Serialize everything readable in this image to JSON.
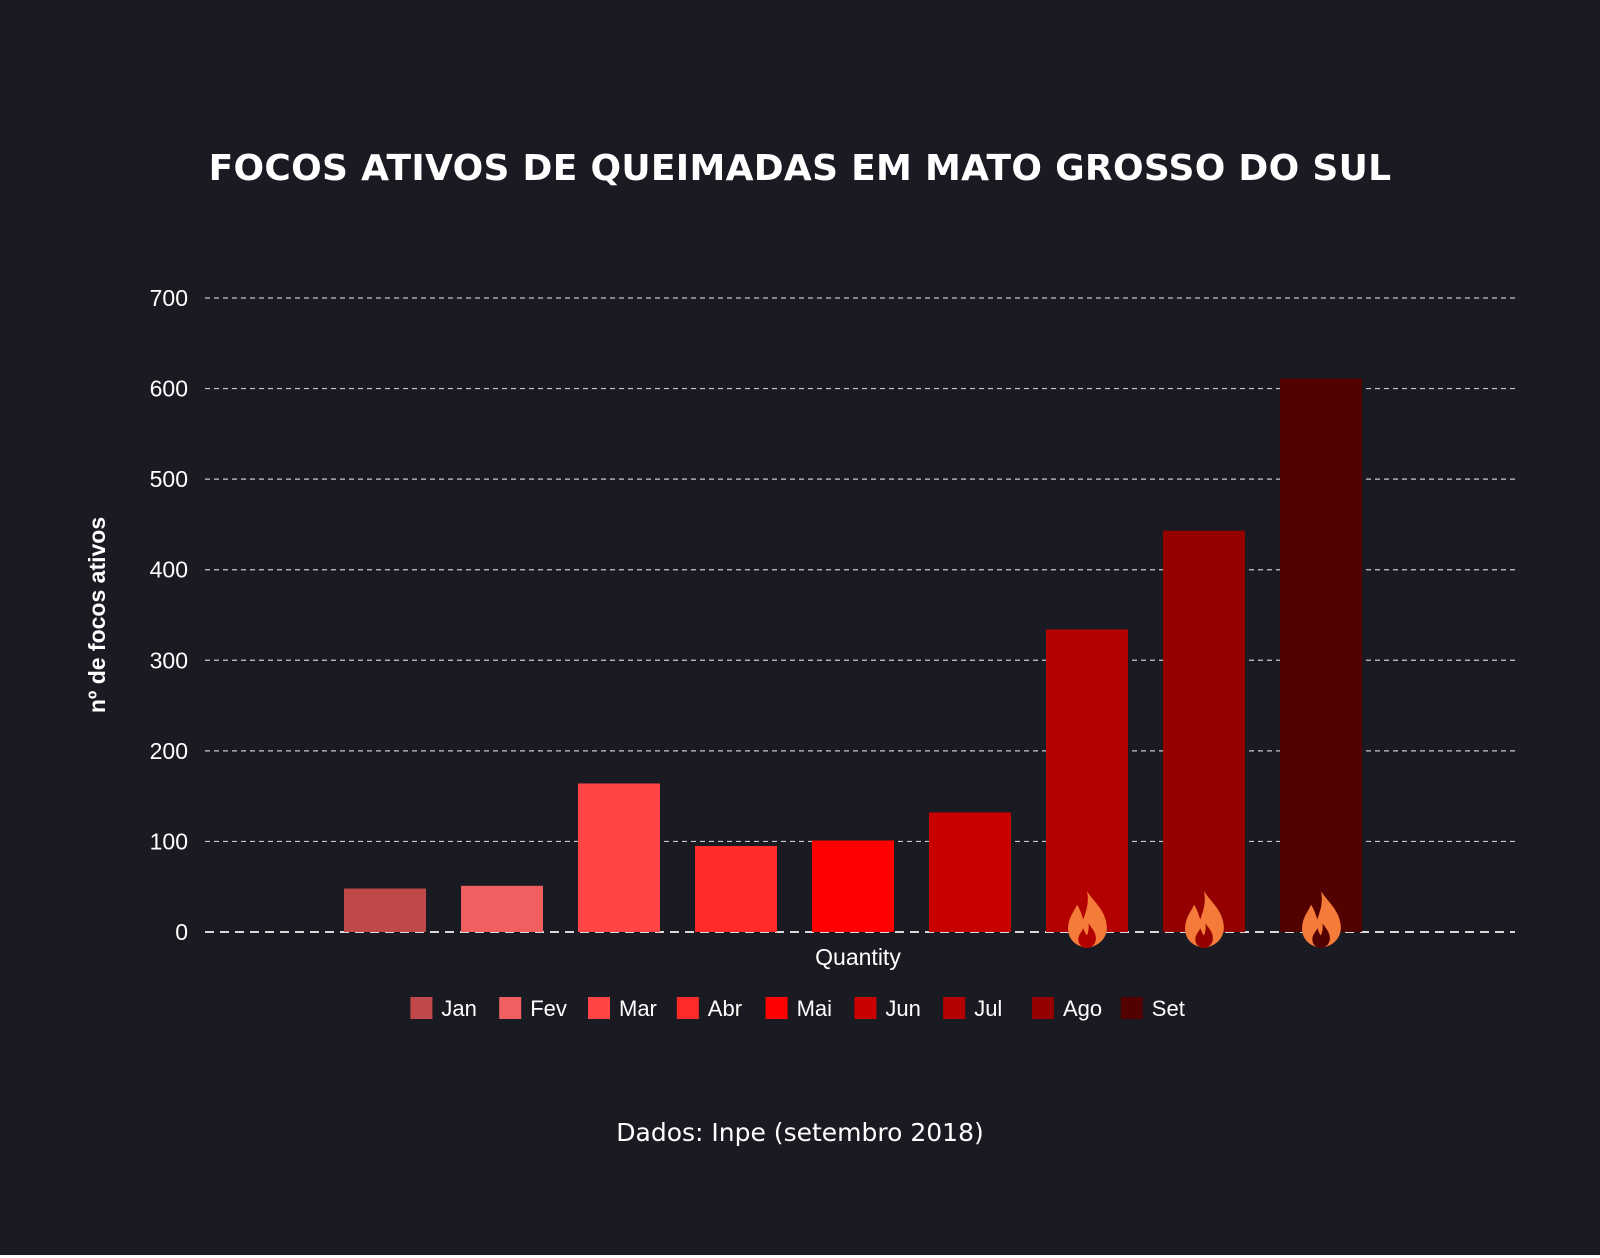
{
  "chart_data": {
    "type": "bar",
    "title": "FOCOS ATIVOS DE QUEIMADAS EM MATO GROSSO DO SUL",
    "xlabel": "Quantity",
    "ylabel": "nº de focos ativos",
    "ylim": [
      0,
      700
    ],
    "yticks": [
      "0",
      "100",
      "200",
      "300",
      "400",
      "500",
      "600",
      "700"
    ],
    "grid": true,
    "legend_position": "bottom",
    "categories": [
      "Jan",
      "Fev",
      "Mar",
      "Abr",
      "Mai",
      "Jun",
      "Jul",
      "Ago",
      "Set"
    ],
    "values": [
      48,
      51,
      164,
      95,
      101,
      132,
      334,
      443,
      611
    ],
    "colors": [
      "#c04848",
      "#f06060",
      "#ff4545",
      "#ff2a2a",
      "#ff0000",
      "#c90000",
      "#b30000",
      "#950000",
      "#520000"
    ],
    "flame_icon_categories": [
      "Jul",
      "Ago",
      "Set"
    ],
    "flame_color": "#f47b3a",
    "source": "Dados: Inpe (setembro 2018)"
  }
}
